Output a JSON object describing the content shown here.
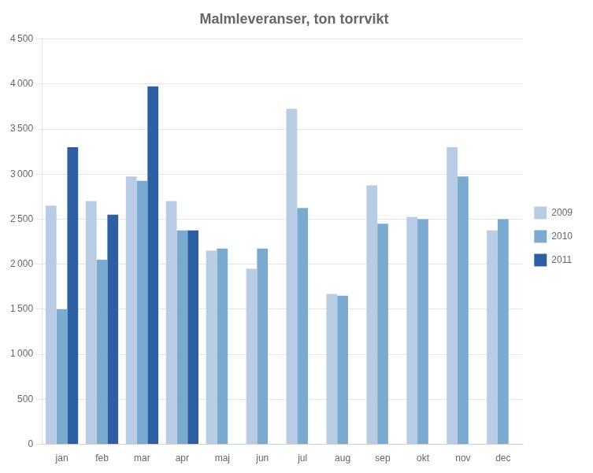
{
  "chart_data": {
    "type": "bar",
    "title": "Malmleveranser, ton torrvikt",
    "categories": [
      "jan",
      "feb",
      "mar",
      "apr",
      "maj",
      "jun",
      "jul",
      "aug",
      "sep",
      "okt",
      "nov",
      "dec"
    ],
    "series": [
      {
        "name": "2009",
        "color": "#b8cce4",
        "values": [
          2650,
          2700,
          2975,
          2700,
          2150,
          1950,
          3725,
          1670,
          2875,
          2525,
          3300,
          2375
        ]
      },
      {
        "name": "2010",
        "color": "#7aaad0",
        "values": [
          1500,
          2050,
          2925,
          2375,
          2175,
          2175,
          2625,
          1650,
          2450,
          2500,
          2975,
          2500
        ]
      },
      {
        "name": "2011",
        "color": "#2e5fa3",
        "values": [
          3300,
          2550,
          3975,
          2375,
          null,
          null,
          null,
          null,
          null,
          null,
          null,
          null
        ]
      }
    ],
    "ylim": [
      0,
      4500
    ],
    "yticks": [
      0,
      500,
      {
        "value": 1000,
        "label": "1 000"
      },
      {
        "value": 1500,
        "label": "1 500"
      },
      {
        "value": 2000,
        "label": "2 000"
      },
      {
        "value": 2500,
        "label": "2 500"
      },
      {
        "value": 3000,
        "label": "3 000"
      },
      {
        "value": 3500,
        "label": "3 500"
      },
      {
        "value": 4000,
        "label": "4 000"
      },
      {
        "value": 4500,
        "label": "4 500"
      }
    ],
    "grid": true,
    "legend": "right"
  }
}
